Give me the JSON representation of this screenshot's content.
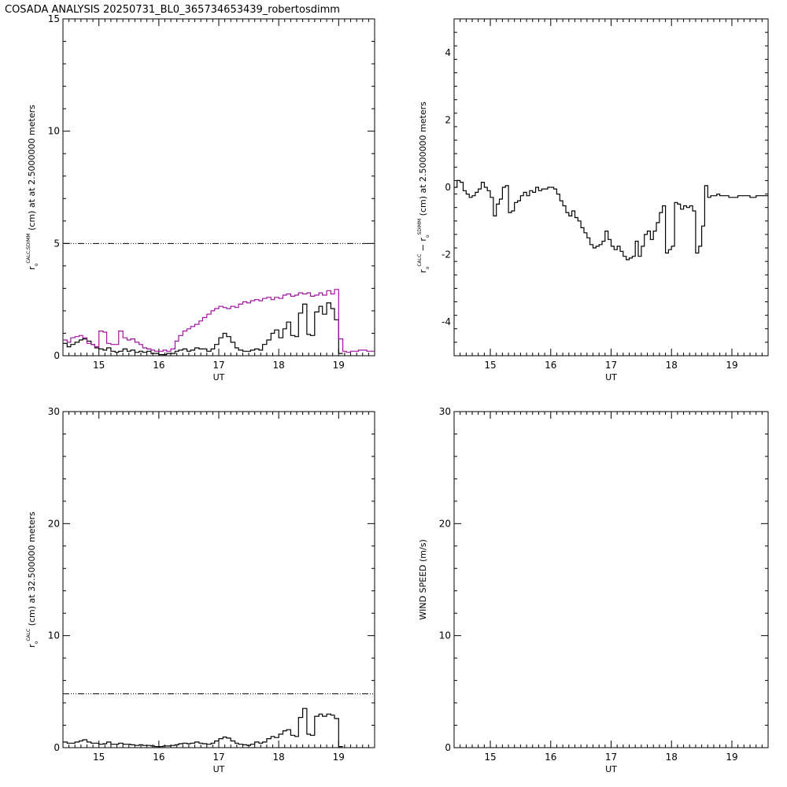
{
  "title": "COSADA ANALYSIS 20250731_BL0_365734653439_robertosdimm",
  "colors": {
    "axis": "#000000",
    "calc": "#000000",
    "sdimm": "#a0149f",
    "background": "#ffffff"
  },
  "chart_data": [
    {
      "id": "r0-calc-sdimm",
      "type": "line",
      "xlim": [
        14.4,
        19.6
      ],
      "ylim": [
        0,
        15
      ],
      "xticks": [
        15,
        16,
        17,
        18,
        19
      ],
      "yticks": [
        0,
        5,
        10,
        15
      ],
      "xlabel": "UT",
      "ylabel": {
        "symbol": "r",
        "sub": "o",
        "sup": "CALC,SDIMM",
        "rest": "(cm)  at  at 2.5000000 meters"
      },
      "reference_line": {
        "y": 5.0,
        "style": "dash-dot"
      },
      "series": [
        {
          "color": "#000000",
          "step": true,
          "x": [
            14.4,
            14.47,
            14.53,
            14.6,
            14.67,
            14.73,
            14.8,
            14.87,
            14.93,
            15.0,
            15.07,
            15.13,
            15.2,
            15.27,
            15.33,
            15.4,
            15.47,
            15.53,
            15.6,
            15.67,
            15.73,
            15.8,
            15.87,
            15.93,
            16.0,
            16.07,
            16.13,
            16.2,
            16.27,
            16.33,
            16.4,
            16.47,
            16.53,
            16.6,
            16.67,
            16.73,
            16.8,
            16.87,
            16.93,
            17.0,
            17.07,
            17.13,
            17.2,
            17.27,
            17.33,
            17.4,
            17.47,
            17.53,
            17.6,
            17.67,
            17.73,
            17.8,
            17.87,
            17.93,
            18.0,
            18.07,
            18.13,
            18.2,
            18.27,
            18.33,
            18.4,
            18.47,
            18.53,
            18.6,
            18.67,
            18.73,
            18.8,
            18.87,
            18.93,
            19.0
          ],
          "y": [
            0.55,
            0.4,
            0.5,
            0.6,
            0.7,
            0.75,
            0.65,
            0.5,
            0.35,
            0.3,
            0.25,
            0.35,
            0.2,
            0.15,
            0.2,
            0.3,
            0.2,
            0.25,
            0.15,
            0.2,
            0.15,
            0.2,
            0.1,
            0.1,
            0.05,
            0.05,
            0.1,
            0.1,
            0.2,
            0.25,
            0.3,
            0.2,
            0.25,
            0.35,
            0.3,
            0.3,
            0.2,
            0.3,
            0.5,
            0.8,
            1.0,
            0.85,
            0.6,
            0.35,
            0.25,
            0.2,
            0.2,
            0.25,
            0.3,
            0.25,
            0.5,
            0.7,
            1.0,
            1.15,
            0.8,
            1.2,
            1.5,
            0.9,
            0.85,
            1.9,
            2.3,
            0.95,
            0.9,
            1.95,
            2.2,
            1.85,
            2.35,
            2.1,
            1.6,
            0.1
          ]
        },
        {
          "color": "#a0149f",
          "step": true,
          "x": [
            14.4,
            14.47,
            14.53,
            14.6,
            14.67,
            14.73,
            14.8,
            14.87,
            14.93,
            15.0,
            15.07,
            15.13,
            15.2,
            15.27,
            15.33,
            15.4,
            15.47,
            15.53,
            15.6,
            15.67,
            15.73,
            15.8,
            15.87,
            15.93,
            16.0,
            16.07,
            16.13,
            16.2,
            16.27,
            16.33,
            16.4,
            16.47,
            16.53,
            16.6,
            16.67,
            16.73,
            16.8,
            16.87,
            16.93,
            17.0,
            17.07,
            17.13,
            17.2,
            17.27,
            17.33,
            17.4,
            17.47,
            17.53,
            17.6,
            17.67,
            17.73,
            17.8,
            17.87,
            17.93,
            18.0,
            18.07,
            18.13,
            18.2,
            18.27,
            18.33,
            18.4,
            18.47,
            18.53,
            18.6,
            18.67,
            18.73,
            18.8,
            18.87,
            18.93,
            19.0,
            19.07,
            19.13,
            19.2,
            19.27,
            19.33,
            19.4,
            19.47,
            19.53
          ],
          "y": [
            0.7,
            0.6,
            0.8,
            0.85,
            0.9,
            0.8,
            0.55,
            0.5,
            0.4,
            1.1,
            1.05,
            0.55,
            0.5,
            0.5,
            1.1,
            0.8,
            0.7,
            0.75,
            0.6,
            0.5,
            0.35,
            0.3,
            0.25,
            0.2,
            0.2,
            0.25,
            0.2,
            0.3,
            0.65,
            0.9,
            1.1,
            1.2,
            1.3,
            1.4,
            1.55,
            1.7,
            1.85,
            2.0,
            2.1,
            2.2,
            2.15,
            2.1,
            2.2,
            2.15,
            2.3,
            2.4,
            2.35,
            2.45,
            2.5,
            2.45,
            2.55,
            2.6,
            2.5,
            2.6,
            2.55,
            2.7,
            2.75,
            2.65,
            2.7,
            2.8,
            2.75,
            2.8,
            2.65,
            2.7,
            2.8,
            2.7,
            2.9,
            2.75,
            2.95,
            0.75,
            0.2,
            0.15,
            0.2,
            0.2,
            0.25,
            0.25,
            0.2,
            0.2
          ]
        }
      ]
    },
    {
      "id": "r0-difference",
      "type": "line",
      "xlim": [
        14.4,
        19.6
      ],
      "ylim": [
        -5,
        5
      ],
      "xticks": [
        15,
        16,
        17,
        18,
        19
      ],
      "yticks": [
        -4,
        -2,
        0,
        2,
        4
      ],
      "xlabel": "UT",
      "ylabel": {
        "symbol": "r",
        "sub": "o",
        "sup": "CALC",
        "mid": "− r",
        "sub2": "o",
        "sup2": "SDIMM",
        "rest": "(cm) at 2.5000000 meters"
      },
      "series": [
        {
          "color": "#000000",
          "step": true,
          "x": [
            14.4,
            14.45,
            14.5,
            14.55,
            14.6,
            14.65,
            14.7,
            14.75,
            14.8,
            14.85,
            14.9,
            14.95,
            15.0,
            15.05,
            15.1,
            15.15,
            15.2,
            15.25,
            15.3,
            15.35,
            15.4,
            15.45,
            15.5,
            15.55,
            15.6,
            15.65,
            15.7,
            15.75,
            15.8,
            15.85,
            15.9,
            15.95,
            16.0,
            16.05,
            16.1,
            16.15,
            16.2,
            16.25,
            16.3,
            16.35,
            16.4,
            16.45,
            16.5,
            16.55,
            16.6,
            16.65,
            16.7,
            16.75,
            16.8,
            16.85,
            16.9,
            16.95,
            17.0,
            17.05,
            17.1,
            17.15,
            17.2,
            17.25,
            17.3,
            17.35,
            17.4,
            17.45,
            17.5,
            17.55,
            17.6,
            17.65,
            17.7,
            17.75,
            17.8,
            17.85,
            17.9,
            17.95,
            18.0,
            18.05,
            18.1,
            18.15,
            18.2,
            18.25,
            18.3,
            18.35,
            18.4,
            18.45,
            18.5,
            18.55,
            18.6,
            18.65,
            18.7,
            18.75,
            18.8,
            18.85,
            18.9,
            18.95,
            19.0,
            19.05,
            19.1,
            19.15,
            19.2,
            19.25,
            19.3,
            19.35,
            19.4,
            19.45,
            19.5,
            19.55
          ],
          "y": [
            0.0,
            0.2,
            0.15,
            -0.1,
            -0.2,
            -0.3,
            -0.25,
            -0.15,
            -0.05,
            0.15,
            0.0,
            -0.1,
            -0.3,
            -0.85,
            -0.5,
            -0.35,
            0.0,
            0.05,
            -0.75,
            -0.7,
            -0.45,
            -0.4,
            -0.25,
            -0.15,
            -0.25,
            -0.1,
            -0.15,
            0.0,
            -0.1,
            -0.05,
            -0.05,
            0.0,
            0.0,
            -0.05,
            -0.2,
            -0.4,
            -0.55,
            -0.75,
            -0.85,
            -0.7,
            -0.9,
            -1.0,
            -1.2,
            -1.35,
            -1.5,
            -1.7,
            -1.8,
            -1.75,
            -1.7,
            -1.6,
            -1.3,
            -1.55,
            -1.75,
            -1.85,
            -1.75,
            -1.9,
            -2.05,
            -2.15,
            -2.1,
            -2.05,
            -1.6,
            -2.05,
            -1.75,
            -1.4,
            -1.3,
            -1.55,
            -1.3,
            -1.05,
            -0.75,
            -0.55,
            -1.95,
            -1.85,
            -1.75,
            -0.45,
            -0.5,
            -0.65,
            -0.55,
            -0.6,
            -0.55,
            -0.7,
            -1.95,
            -1.75,
            -1.15,
            0.05,
            -0.3,
            -0.25,
            -0.25,
            -0.2,
            -0.25,
            -0.25,
            -0.25,
            -0.3,
            -0.3,
            -0.3,
            -0.25,
            -0.25,
            -0.25,
            -0.25,
            -0.3,
            -0.3,
            -0.25,
            -0.25,
            -0.25,
            -0.25
          ]
        }
      ]
    },
    {
      "id": "r0-calc-32m",
      "type": "line",
      "xlim": [
        14.4,
        19.6
      ],
      "ylim": [
        0,
        30
      ],
      "xticks": [
        15,
        16,
        17,
        18,
        19
      ],
      "yticks": [
        0,
        10,
        20,
        30
      ],
      "xlabel": "UT",
      "ylabel": {
        "symbol": "r",
        "sub": "o",
        "sup": "CALC",
        "rest": "(cm) at 32.500000 meters"
      },
      "reference_line": {
        "y": 4.8,
        "style": "dash-dot"
      },
      "series": [
        {
          "color": "#000000",
          "step": true,
          "x": [
            14.4,
            14.47,
            14.53,
            14.6,
            14.67,
            14.73,
            14.8,
            14.87,
            14.93,
            15.0,
            15.07,
            15.13,
            15.2,
            15.27,
            15.33,
            15.4,
            15.47,
            15.53,
            15.6,
            15.67,
            15.73,
            15.8,
            15.87,
            15.93,
            16.0,
            16.07,
            16.13,
            16.2,
            16.27,
            16.33,
            16.4,
            16.47,
            16.53,
            16.6,
            16.67,
            16.73,
            16.8,
            16.87,
            16.93,
            17.0,
            17.07,
            17.13,
            17.2,
            17.27,
            17.33,
            17.4,
            17.47,
            17.53,
            17.6,
            17.67,
            17.73,
            17.8,
            17.87,
            17.93,
            18.0,
            18.07,
            18.13,
            18.2,
            18.27,
            18.33,
            18.4,
            18.47,
            18.53,
            18.6,
            18.67,
            18.73,
            18.8,
            18.87,
            18.93,
            19.0
          ],
          "y": [
            0.5,
            0.4,
            0.4,
            0.5,
            0.6,
            0.7,
            0.5,
            0.4,
            0.4,
            0.3,
            0.35,
            0.5,
            0.3,
            0.3,
            0.4,
            0.3,
            0.3,
            0.25,
            0.2,
            0.25,
            0.2,
            0.2,
            0.15,
            0.1,
            0.1,
            0.15,
            0.15,
            0.2,
            0.25,
            0.35,
            0.4,
            0.35,
            0.4,
            0.5,
            0.4,
            0.35,
            0.3,
            0.4,
            0.6,
            0.8,
            0.95,
            0.85,
            0.6,
            0.4,
            0.3,
            0.25,
            0.2,
            0.3,
            0.5,
            0.4,
            0.5,
            0.8,
            1.0,
            0.9,
            1.2,
            1.5,
            1.6,
            1.1,
            1.0,
            2.7,
            3.5,
            1.2,
            1.1,
            2.8,
            3.0,
            2.8,
            3.0,
            2.9,
            2.6,
            0.1
          ]
        }
      ]
    },
    {
      "id": "wind-speed",
      "type": "line",
      "xlim": [
        14.4,
        19.6
      ],
      "ylim": [
        0,
        30
      ],
      "xticks": [
        15,
        16,
        17,
        18,
        19
      ],
      "yticks": [
        0,
        10,
        20,
        30
      ],
      "xlabel": "UT",
      "ylabel": {
        "rest": "WIND SPEED (m/s)"
      },
      "series": []
    }
  ]
}
